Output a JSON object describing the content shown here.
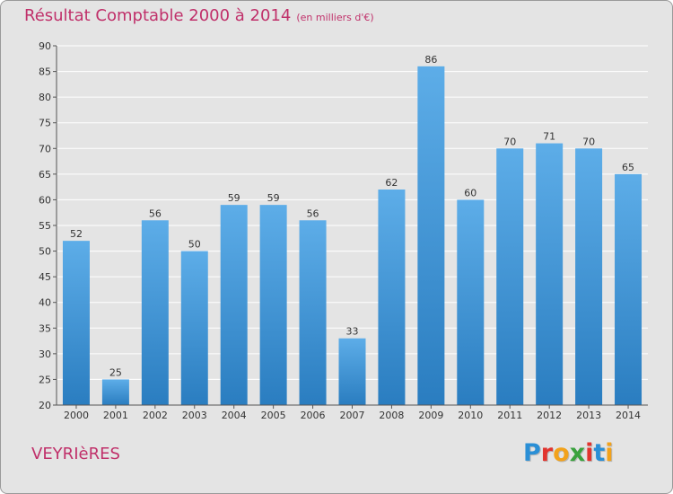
{
  "header": {
    "title": "Résultat Comptable 2000 à 2014",
    "subtitle": "(en milliers d'€)"
  },
  "footer": {
    "commune": "VEYRIèRES",
    "brand_letters": [
      {
        "char": "P",
        "color": "#2a8fd6"
      },
      {
        "char": "r",
        "color": "#e2342e"
      },
      {
        "char": "o",
        "color": "#f2a21b"
      },
      {
        "char": "x",
        "color": "#3aa23e"
      },
      {
        "char": "i",
        "color": "#e2342e"
      },
      {
        "char": "t",
        "color": "#2a8fd6"
      },
      {
        "char": "i",
        "color": "#f2a21b"
      }
    ]
  },
  "chart_data": {
    "type": "bar",
    "title": "Résultat Comptable 2000 à 2014",
    "subtitle": "(en milliers d'€)",
    "categories": [
      "2000",
      "2001",
      "2002",
      "2003",
      "2004",
      "2005",
      "2006",
      "2007",
      "2008",
      "2009",
      "2010",
      "2011",
      "2012",
      "2013",
      "2014"
    ],
    "values": [
      52,
      25,
      56,
      50,
      59,
      59,
      56,
      33,
      62,
      86,
      60,
      70,
      71,
      70,
      65
    ],
    "ylim": [
      20,
      90
    ],
    "yticks": [
      20,
      25,
      30,
      35,
      40,
      45,
      50,
      55,
      60,
      65,
      70,
      75,
      80,
      85,
      90
    ],
    "grid": true,
    "bar_color_top": "#5dade8",
    "bar_color_bottom": "#2a7dc0",
    "xlabel": "",
    "ylabel": ""
  }
}
